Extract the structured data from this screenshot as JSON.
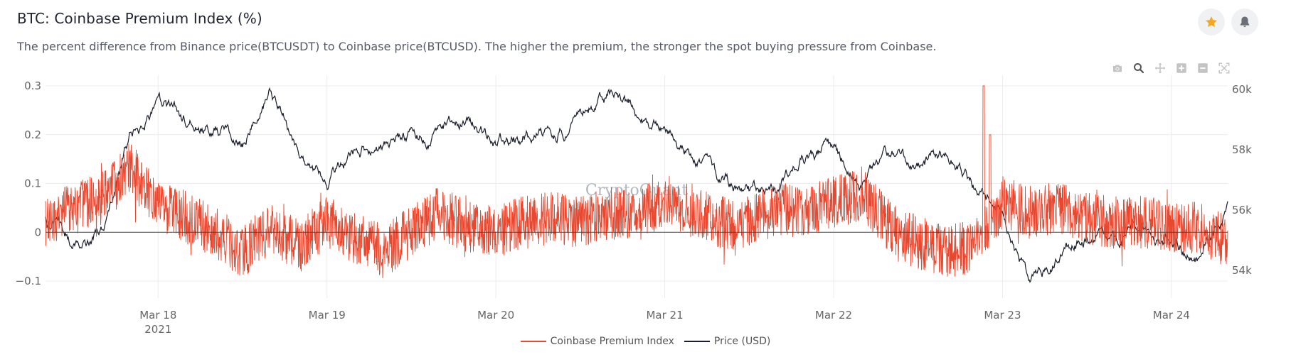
{
  "header": {
    "title": "BTC: Coinbase Premium Index (%)",
    "description": "The percent difference from Binance price(BTCUSDT) to Coinbase price(BTCUSD). The higher the premium, the stronger the spot buying pressure from Coinbase."
  },
  "actions": {
    "favorite_icon": "star-icon",
    "alert_icon": "bell-icon"
  },
  "modebar": {
    "icons": [
      "camera-icon",
      "zoom-icon",
      "pan-icon",
      "zoom-in-icon",
      "zoom-out-icon",
      "autoscale-icon"
    ]
  },
  "watermark": "CryptoQuant",
  "colors": {
    "premium": "#e8482f",
    "price": "#1a1f2b",
    "star": "#f5a623",
    "grid": "#ececec",
    "zero_line": "#444444"
  },
  "chart_data": {
    "type": "line",
    "title": "BTC: Coinbase Premium Index (%)",
    "x_range": [
      "2021-03-17 08:00",
      "2021-03-24 08:00"
    ],
    "x_ticks": [
      {
        "label": "Mar 18",
        "sublabel": "2021",
        "value": "2021-03-18"
      },
      {
        "label": "Mar 19",
        "sublabel": "",
        "value": "2021-03-19"
      },
      {
        "label": "Mar 20",
        "sublabel": "",
        "value": "2021-03-20"
      },
      {
        "label": "Mar 21",
        "sublabel": "",
        "value": "2021-03-21"
      },
      {
        "label": "Mar 22",
        "sublabel": "",
        "value": "2021-03-22"
      },
      {
        "label": "Mar 23",
        "sublabel": "",
        "value": "2021-03-23"
      },
      {
        "label": "Mar 24",
        "sublabel": "",
        "value": "2021-03-24"
      }
    ],
    "y_left": {
      "range": [
        -0.14,
        0.3
      ],
      "ticks": [
        {
          "value": 0.3,
          "label": "0.3"
        },
        {
          "value": 0.2,
          "label": "0.2"
        },
        {
          "value": 0.1,
          "label": "0.1"
        },
        {
          "value": 0,
          "label": "0"
        },
        {
          "value": -0.1,
          "label": "−0.1"
        }
      ]
    },
    "y_right": {
      "range": [
        53000,
        60000
      ],
      "ticks": [
        {
          "value": 60000,
          "label": "60k"
        },
        {
          "value": 58000,
          "label": "58k"
        },
        {
          "value": 56000,
          "label": "56k"
        },
        {
          "value": 54000,
          "label": "54k"
        }
      ]
    },
    "legend_position": "bottom-center",
    "grid": true,
    "series": [
      {
        "name": "Coinbase Premium Index",
        "axis": "left",
        "note": "hourly anchor points",
        "x": [
          "2021-03-17 08:00",
          "2021-03-17 12:00",
          "2021-03-17 16:00",
          "2021-03-17 20:00",
          "2021-03-18 00:00",
          "2021-03-18 04:00",
          "2021-03-18 08:00",
          "2021-03-18 12:00",
          "2021-03-18 16:00",
          "2021-03-18 20:00",
          "2021-03-19 00:00",
          "2021-03-19 04:00",
          "2021-03-19 08:00",
          "2021-03-19 12:00",
          "2021-03-19 16:00",
          "2021-03-19 20:00",
          "2021-03-20 00:00",
          "2021-03-20 04:00",
          "2021-03-20 08:00",
          "2021-03-20 12:00",
          "2021-03-20 16:00",
          "2021-03-20 20:00",
          "2021-03-21 00:00",
          "2021-03-21 04:00",
          "2021-03-21 08:00",
          "2021-03-21 12:00",
          "2021-03-21 16:00",
          "2021-03-21 20:00",
          "2021-03-22 00:00",
          "2021-03-22 04:00",
          "2021-03-22 08:00",
          "2021-03-22 12:00",
          "2021-03-22 16:00",
          "2021-03-22 20:00",
          "2021-03-23 00:00",
          "2021-03-23 04:00",
          "2021-03-23 08:00",
          "2021-03-23 12:00",
          "2021-03-23 16:00",
          "2021-03-23 20:00",
          "2021-03-24 00:00",
          "2021-03-24 04:00",
          "2021-03-24 08:00"
        ],
        "values": [
          0.02,
          0.05,
          0.07,
          0.13,
          0.06,
          0.03,
          0.0,
          -0.04,
          0.01,
          -0.03,
          0.02,
          -0.01,
          -0.04,
          0.0,
          0.04,
          0.01,
          0.0,
          0.02,
          0.03,
          0.02,
          0.04,
          0.03,
          0.07,
          0.04,
          0.02,
          0.02,
          0.05,
          0.04,
          0.06,
          0.08,
          0.01,
          -0.02,
          -0.04,
          -0.03,
          0.06,
          0.04,
          0.05,
          0.03,
          0.02,
          0.02,
          0.01,
          0.01,
          -0.02
        ]
      },
      {
        "name": "Price (USD)",
        "axis": "right",
        "note": "anchor points",
        "x": [
          "2021-03-17 08:00",
          "2021-03-17 12:00",
          "2021-03-17 16:00",
          "2021-03-17 20:00",
          "2021-03-18 00:00",
          "2021-03-18 04:00",
          "2021-03-18 08:00",
          "2021-03-18 12:00",
          "2021-03-18 16:00",
          "2021-03-18 20:00",
          "2021-03-19 00:00",
          "2021-03-19 04:00",
          "2021-03-19 08:00",
          "2021-03-19 12:00",
          "2021-03-19 16:00",
          "2021-03-19 20:00",
          "2021-03-20 00:00",
          "2021-03-20 04:00",
          "2021-03-20 08:00",
          "2021-03-20 12:00",
          "2021-03-20 16:00",
          "2021-03-20 20:00",
          "2021-03-21 00:00",
          "2021-03-21 04:00",
          "2021-03-21 08:00",
          "2021-03-21 12:00",
          "2021-03-21 16:00",
          "2021-03-21 20:00",
          "2021-03-22 00:00",
          "2021-03-22 04:00",
          "2021-03-22 08:00",
          "2021-03-22 12:00",
          "2021-03-22 16:00",
          "2021-03-22 20:00",
          "2021-03-23 00:00",
          "2021-03-23 04:00",
          "2021-03-23 08:00",
          "2021-03-23 12:00",
          "2021-03-23 16:00",
          "2021-03-23 20:00",
          "2021-03-24 00:00",
          "2021-03-24 04:00",
          "2021-03-24 08:00"
        ],
        "values": [
          55700,
          54900,
          55300,
          58500,
          59300,
          59000,
          58700,
          58300,
          59900,
          58000,
          56800,
          57900,
          58200,
          58500,
          58600,
          58900,
          58200,
          58600,
          58500,
          59000,
          59800,
          59300,
          58600,
          57800,
          57000,
          56500,
          56900,
          57700,
          58100,
          56900,
          57900,
          57600,
          57700,
          56900,
          55800,
          53500,
          54300,
          55100,
          55200,
          55300,
          55000,
          54300,
          56100
        ]
      }
    ]
  },
  "legend": {
    "items": [
      {
        "label": "Coinbase Premium Index"
      },
      {
        "label": "Price (USD)"
      }
    ]
  }
}
